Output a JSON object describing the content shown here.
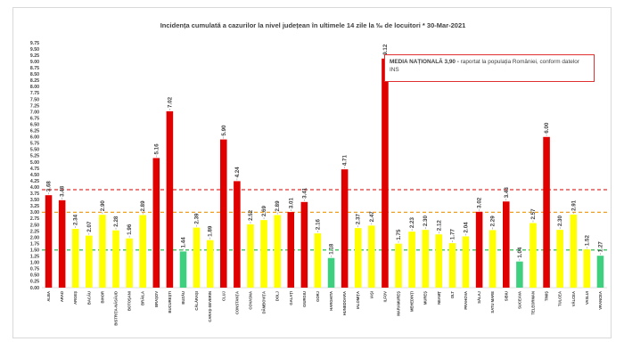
{
  "chart_data": {
    "type": "bar",
    "title": "Incidența cumulată a cazurilor la nivel județean în ultimele 14 zile la ‰ de locuitori * 30-Mar-2021",
    "ylim": [
      0,
      9.75
    ],
    "yticks": [
      "0.00",
      "0.25",
      "0.50",
      "0.75",
      "1.00",
      "1.25",
      "1.50",
      "1.75",
      "2.00",
      "2.25",
      "2.50",
      "2.75",
      "3.00",
      "3.25",
      "3.50",
      "3.75",
      "4.00",
      "4.25",
      "4.50",
      "4.75",
      "5.00",
      "5.25",
      "5.50",
      "5.75",
      "6.00",
      "6.25",
      "6.50",
      "6.75",
      "7.00",
      "7.25",
      "7.50",
      "7.75",
      "8.00",
      "8.25",
      "8.50",
      "8.75",
      "9.00",
      "9.25",
      "9.50",
      "9.75"
    ],
    "categories": [
      "ALBA",
      "ARAD",
      "ARGEȘ",
      "BACĂU",
      "BIHOR",
      "BISTRIȚA-NĂSĂUD",
      "BOTOȘANI",
      "BRĂILA",
      "BRAȘOV",
      "BUCUREȘTI",
      "BUZĂU",
      "CĂLĂRAȘI",
      "CARAȘ-SEVERIN",
      "CLUJ",
      "CONSTANȚA",
      "COVASNA",
      "DÂMBOVIȚA",
      "DOLJ",
      "GALAȚI",
      "GIURGIU",
      "GORJ",
      "HARGHITA",
      "HUNEDOARA",
      "IALOMIȚA",
      "IAȘI",
      "ILFOV",
      "MARAMUREȘ",
      "MEHEDINȚI",
      "MUREȘ",
      "NEAMȚ",
      "OLT",
      "PRAHOVA",
      "SĂLAJ",
      "SATU MARE",
      "SIBIU",
      "SUCEAVA",
      "TELEORMAN",
      "TIMIȘ",
      "TULCEA",
      "VÂLCEA",
      "VASLUI",
      "VRANCEA"
    ],
    "values": [
      3.68,
      3.48,
      2.34,
      2.07,
      2.9,
      2.28,
      1.96,
      2.89,
      5.16,
      7.02,
      1.44,
      2.39,
      1.89,
      5.9,
      4.24,
      2.52,
      2.69,
      2.89,
      3.01,
      3.41,
      2.16,
      1.18,
      4.71,
      2.37,
      2.47,
      9.12,
      1.75,
      2.23,
      2.3,
      2.12,
      1.77,
      2.04,
      3.02,
      2.29,
      3.43,
      1.04,
      2.57,
      6.0,
      2.3,
      2.91,
      1.52,
      1.27
    ],
    "value_labels": [
      "3.68",
      "3.48",
      "2.34",
      "2.07",
      "2.90",
      "2.28",
      "1.96",
      "2.89",
      "5.16",
      "7.02",
      "1.44",
      "2.39",
      "1.89",
      "5.90",
      "4.24",
      "2.52",
      "2.69",
      "2.89",
      "3.01",
      "3.41",
      "2.16",
      "1.18",
      "4.71",
      "2.37",
      "2.47",
      "9.12",
      "1.75",
      "2.23",
      "2.30",
      "2.12",
      "1.77",
      "2.04",
      "3.02",
      "2.29",
      "3.43",
      "1.04",
      "2.57",
      "6.00",
      "2.30",
      "2.91",
      "1.52",
      "1.27"
    ],
    "thresholds": [
      {
        "value": 3.9,
        "color": "#e03030"
      },
      {
        "value": 3.0,
        "color": "#f0a020"
      },
      {
        "value": 1.5,
        "color": "#40c060"
      }
    ],
    "colors": {
      "red": "#e00000",
      "yellow": "#ffff00",
      "green": "#3fd07f"
    },
    "grid": false,
    "legend": "none"
  },
  "note": {
    "bold": "MEDIA NAȚIONALĂ  3,90 -",
    "rest": " raportat la populația României, conform datelor INS"
  }
}
